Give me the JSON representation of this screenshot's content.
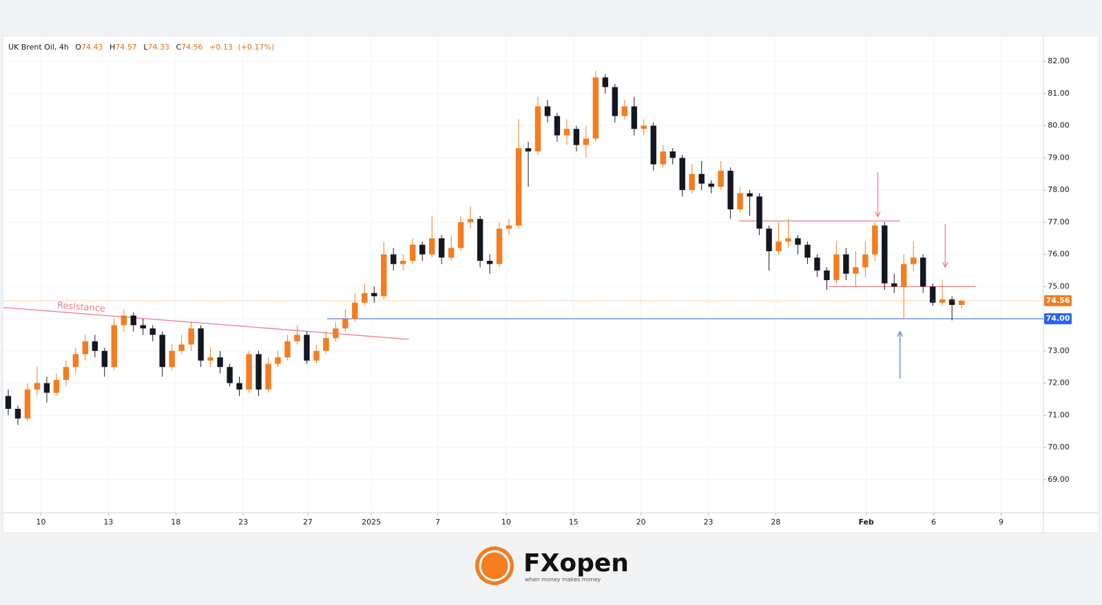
{
  "chart_data": {
    "type": "candlestick",
    "header": {
      "symbol": "UK Brent Oil, 4h",
      "open": {
        "label": "O",
        "value": 74.43
      },
      "high": {
        "label": "H",
        "value": 74.57
      },
      "low": {
        "label": "L",
        "value": 74.33
      },
      "close": {
        "label": "C",
        "value": 74.56
      },
      "change": "+0.13",
      "change_pct": "(+0.17%)"
    },
    "up_color": "#f57c1f",
    "down_color": "#131722",
    "x": [
      0,
      1,
      2,
      3,
      4,
      5,
      6,
      7,
      8,
      9,
      10,
      11,
      12,
      13,
      14,
      15,
      16,
      17,
      18,
      19,
      20,
      21,
      22,
      23,
      24,
      25,
      26,
      27,
      28,
      29,
      30,
      31,
      32,
      33,
      34,
      35,
      36,
      37,
      38,
      39,
      40,
      41,
      42,
      43,
      44,
      45,
      46,
      47,
      48,
      49,
      50,
      51,
      52,
      53,
      54,
      55,
      56,
      57,
      58,
      59,
      60,
      61,
      62,
      63,
      64,
      65,
      66,
      67,
      68,
      69,
      70,
      71,
      72,
      73,
      74,
      75,
      76,
      77,
      78,
      79,
      80,
      81,
      82,
      83,
      84,
      85,
      86,
      87,
      88,
      89,
      90,
      91,
      92,
      93,
      94,
      95,
      96,
      97,
      98,
      99
    ],
    "open": [
      71.6,
      71.2,
      70.9,
      71.8,
      72.0,
      71.7,
      72.1,
      72.5,
      72.9,
      73.3,
      73.0,
      72.5,
      73.8,
      74.1,
      73.8,
      73.7,
      73.5,
      72.5,
      73.0,
      73.2,
      73.7,
      72.7,
      72.8,
      72.5,
      72.0,
      71.8,
      72.9,
      71.8,
      72.6,
      72.8,
      73.3,
      73.5,
      72.7,
      73.0,
      73.4,
      73.7,
      74.0,
      74.5,
      74.8,
      74.7,
      76.0,
      75.7,
      75.8,
      76.3,
      76.0,
      76.5,
      75.9,
      76.2,
      77.0,
      77.1,
      75.8,
      75.7,
      76.8,
      76.9,
      79.3,
      79.2,
      80.6,
      80.3,
      79.7,
      79.9,
      79.4,
      79.6,
      81.5,
      81.2,
      80.3,
      80.6,
      79.9,
      80.0,
      78.8,
      79.2,
      79.0,
      78.0,
      78.5,
      78.2,
      78.1,
      78.6,
      77.4,
      77.9,
      77.8,
      76.8,
      76.1,
      76.4,
      76.5,
      76.3,
      75.9,
      75.5,
      75.2,
      76.0,
      75.4,
      75.6,
      76.0,
      76.9,
      75.1,
      75.0,
      75.7,
      75.9,
      75.0,
      74.5,
      74.6,
      74.43
    ],
    "high": [
      71.8,
      71.3,
      72.0,
      72.5,
      72.2,
      72.3,
      72.7,
      73.1,
      73.5,
      73.5,
      73.1,
      74.0,
      74.3,
      74.2,
      74.0,
      73.8,
      73.6,
      73.2,
      73.5,
      73.9,
      73.8,
      73.1,
      73.0,
      72.6,
      72.2,
      73.0,
      73.0,
      72.8,
      73.0,
      73.5,
      73.8,
      73.6,
      73.2,
      73.6,
      73.9,
      74.3,
      74.8,
      75.1,
      75.0,
      76.4,
      76.2,
      76.0,
      76.5,
      76.4,
      77.2,
      76.6,
      76.6,
      77.2,
      77.5,
      77.2,
      76.0,
      77.0,
      77.1,
      80.2,
      79.5,
      80.9,
      80.8,
      80.4,
      80.2,
      80.0,
      80.0,
      81.7,
      81.6,
      81.3,
      80.8,
      80.9,
      80.2,
      80.1,
      79.4,
      79.3,
      79.1,
      78.8,
      78.9,
      78.3,
      78.9,
      78.7,
      78.1,
      78.0,
      77.9,
      76.9,
      77.0,
      77.1,
      76.6,
      76.4,
      76.0,
      75.6,
      76.4,
      76.2,
      76.1,
      76.4,
      77.0,
      77.0,
      75.4,
      76.0,
      76.4,
      76.0,
      75.1,
      75.2,
      74.7,
      74.57
    ],
    "low": [
      71.0,
      70.7,
      70.8,
      71.6,
      71.4,
      71.6,
      71.9,
      72.3,
      72.7,
      72.8,
      72.2,
      72.4,
      73.6,
      73.6,
      73.5,
      73.3,
      72.2,
      72.4,
      72.9,
      73.0,
      72.5,
      72.5,
      72.3,
      71.9,
      71.6,
      71.7,
      71.6,
      71.7,
      72.5,
      72.7,
      73.2,
      72.6,
      72.6,
      72.9,
      73.3,
      73.6,
      73.9,
      74.4,
      74.5,
      74.6,
      75.5,
      75.5,
      75.7,
      75.8,
      75.9,
      75.7,
      75.8,
      76.1,
      76.8,
      75.6,
      75.4,
      75.6,
      76.6,
      76.8,
      78.1,
      79.1,
      80.1,
      79.5,
      79.4,
      79.2,
      79.0,
      79.5,
      81.0,
      80.1,
      80.2,
      79.7,
      79.7,
      78.6,
      78.7,
      78.8,
      77.8,
      77.9,
      78.0,
      77.9,
      78.0,
      77.1,
      77.3,
      77.2,
      76.6,
      75.5,
      76.0,
      76.2,
      76.0,
      75.7,
      75.3,
      74.9,
      75.1,
      75.2,
      75.0,
      75.3,
      75.8,
      74.9,
      74.8,
      74.0,
      75.5,
      74.8,
      74.4,
      74.4,
      73.95,
      74.33
    ],
    "close": [
      71.2,
      70.9,
      71.8,
      72.0,
      71.7,
      72.1,
      72.5,
      72.9,
      73.3,
      73.0,
      72.5,
      73.8,
      74.1,
      73.8,
      73.7,
      73.5,
      72.5,
      73.0,
      73.2,
      73.7,
      72.7,
      72.8,
      72.5,
      72.0,
      71.8,
      72.9,
      71.8,
      72.6,
      72.8,
      73.3,
      73.5,
      72.7,
      73.0,
      73.4,
      73.7,
      74.0,
      74.5,
      74.8,
      74.7,
      76.0,
      75.7,
      75.8,
      76.3,
      76.0,
      76.5,
      75.9,
      76.2,
      77.0,
      77.1,
      75.8,
      75.7,
      76.8,
      76.9,
      79.3,
      79.2,
      80.6,
      80.3,
      79.7,
      79.9,
      79.4,
      79.6,
      81.5,
      81.2,
      80.3,
      80.6,
      79.9,
      80.0,
      78.8,
      79.2,
      79.0,
      78.0,
      78.5,
      78.2,
      78.1,
      78.6,
      77.4,
      77.9,
      77.8,
      76.8,
      76.1,
      76.4,
      76.5,
      76.3,
      75.9,
      75.5,
      75.2,
      76.0,
      75.4,
      75.6,
      76.0,
      76.9,
      75.1,
      75.0,
      75.7,
      75.9,
      75.0,
      74.5,
      74.6,
      74.43,
      74.56
    ],
    "xlim": [
      -0.5,
      107.5
    ],
    "xticks": [
      {
        "value": 3.4,
        "label": "10"
      },
      {
        "value": 10.4,
        "label": "13"
      },
      {
        "value": 17.4,
        "label": "18"
      },
      {
        "value": 24.4,
        "label": "23"
      },
      {
        "value": 31.1,
        "label": "27"
      },
      {
        "value": 37.7,
        "label": "2025"
      },
      {
        "value": 44.6,
        "label": "7"
      },
      {
        "value": 51.7,
        "label": "10"
      },
      {
        "value": 58.7,
        "label": "15"
      },
      {
        "value": 65.7,
        "label": "20"
      },
      {
        "value": 72.7,
        "label": "23"
      },
      {
        "value": 79.7,
        "label": "28"
      },
      {
        "value": 89.1,
        "label": "Feb"
      },
      {
        "value": 96.1,
        "label": "6"
      },
      {
        "value": 103.1,
        "label": "9"
      }
    ],
    "ylim": [
      67.97,
      82.73
    ],
    "yticks": [
      {
        "value": 69,
        "label": "69.00"
      },
      {
        "value": 70,
        "label": "70.00"
      },
      {
        "value": 71,
        "label": "71.00"
      },
      {
        "value": 72,
        "label": "72.00"
      },
      {
        "value": 73,
        "label": "73.00"
      },
      {
        "value": 74,
        "label": "74.00"
      },
      {
        "value": 75,
        "label": "75.00"
      },
      {
        "value": 76,
        "label": "76.00"
      },
      {
        "value": 77,
        "label": "77.00"
      },
      {
        "value": 78,
        "label": "78.00"
      },
      {
        "value": 79,
        "label": "79.00"
      },
      {
        "value": 80,
        "label": "80.00"
      },
      {
        "value": 81,
        "label": "81.00"
      },
      {
        "value": 82,
        "label": "82.00"
      }
    ],
    "grid": true,
    "price_tags": [
      {
        "value": 74.56,
        "label": "74.56",
        "color": "#f57c1f"
      },
      {
        "value": 74.0,
        "label": "74.00",
        "color": "#2962ff"
      }
    ],
    "lines": [
      {
        "x1": -0.5,
        "y1": 74.35,
        "x2": 41.6,
        "y2": 73.36,
        "color": "#f07a86",
        "text": "Resistance"
      },
      {
        "x1": 75.9,
        "y1": 77.04,
        "x2": 92.6,
        "y2": 77.04,
        "color": "#f07a86"
      },
      {
        "x1": 85.2,
        "y1": 75.0,
        "x2": 100.4,
        "y2": 75.0,
        "color": "#f07a86"
      },
      {
        "x1": 33.1,
        "y1": 74.0,
        "x2": 107.5,
        "y2": 74.0,
        "color": "#5b7fe0"
      }
    ],
    "arrows": [
      {
        "x": 90.3,
        "y1": 78.56,
        "y2": 77.17,
        "color": "#f07a86"
      },
      {
        "x": 97.3,
        "y1": 76.95,
        "y2": 75.6,
        "color": "#f07a86"
      },
      {
        "x": 92.6,
        "y1": 72.14,
        "y2": 73.6,
        "color": "#5b7fe0"
      }
    ]
  },
  "brand": {
    "name": "FXopen",
    "tagline": "when money makes money"
  }
}
